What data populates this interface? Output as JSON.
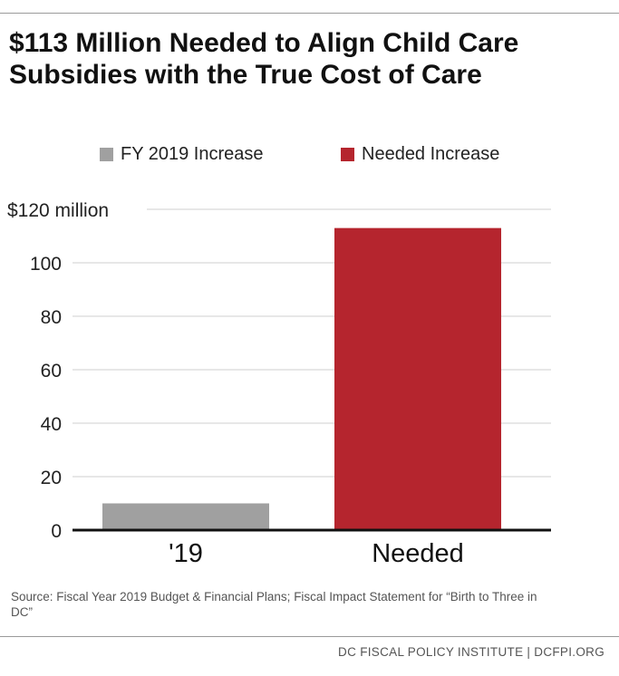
{
  "title": "$113 Million Needed to Align Child Care Subsidies with the True Cost of Care",
  "legend": [
    {
      "label": "FY 2019 Increase",
      "color": "#a0a0a0"
    },
    {
      "label": "Needed Increase",
      "color": "#b5252e"
    }
  ],
  "chart_data": {
    "type": "bar",
    "categories": [
      "'19",
      "Needed"
    ],
    "values": [
      10,
      113
    ],
    "colors": [
      "#a0a0a0",
      "#b5252e"
    ],
    "ylim": [
      0,
      120
    ],
    "yticks": [
      0,
      20,
      40,
      60,
      80,
      100,
      120
    ],
    "ytick_labels": [
      "0",
      "20",
      "40",
      "60",
      "80",
      "100",
      "$120 million"
    ],
    "grid": true,
    "legend_position": "top"
  },
  "source": "Source: Fiscal Year 2019 Budget & Financial Plans; Fiscal Impact Statement for “Birth to Three in DC”",
  "footer": "DC FISCAL POLICY INSTITUTE | DCFPI.ORG"
}
